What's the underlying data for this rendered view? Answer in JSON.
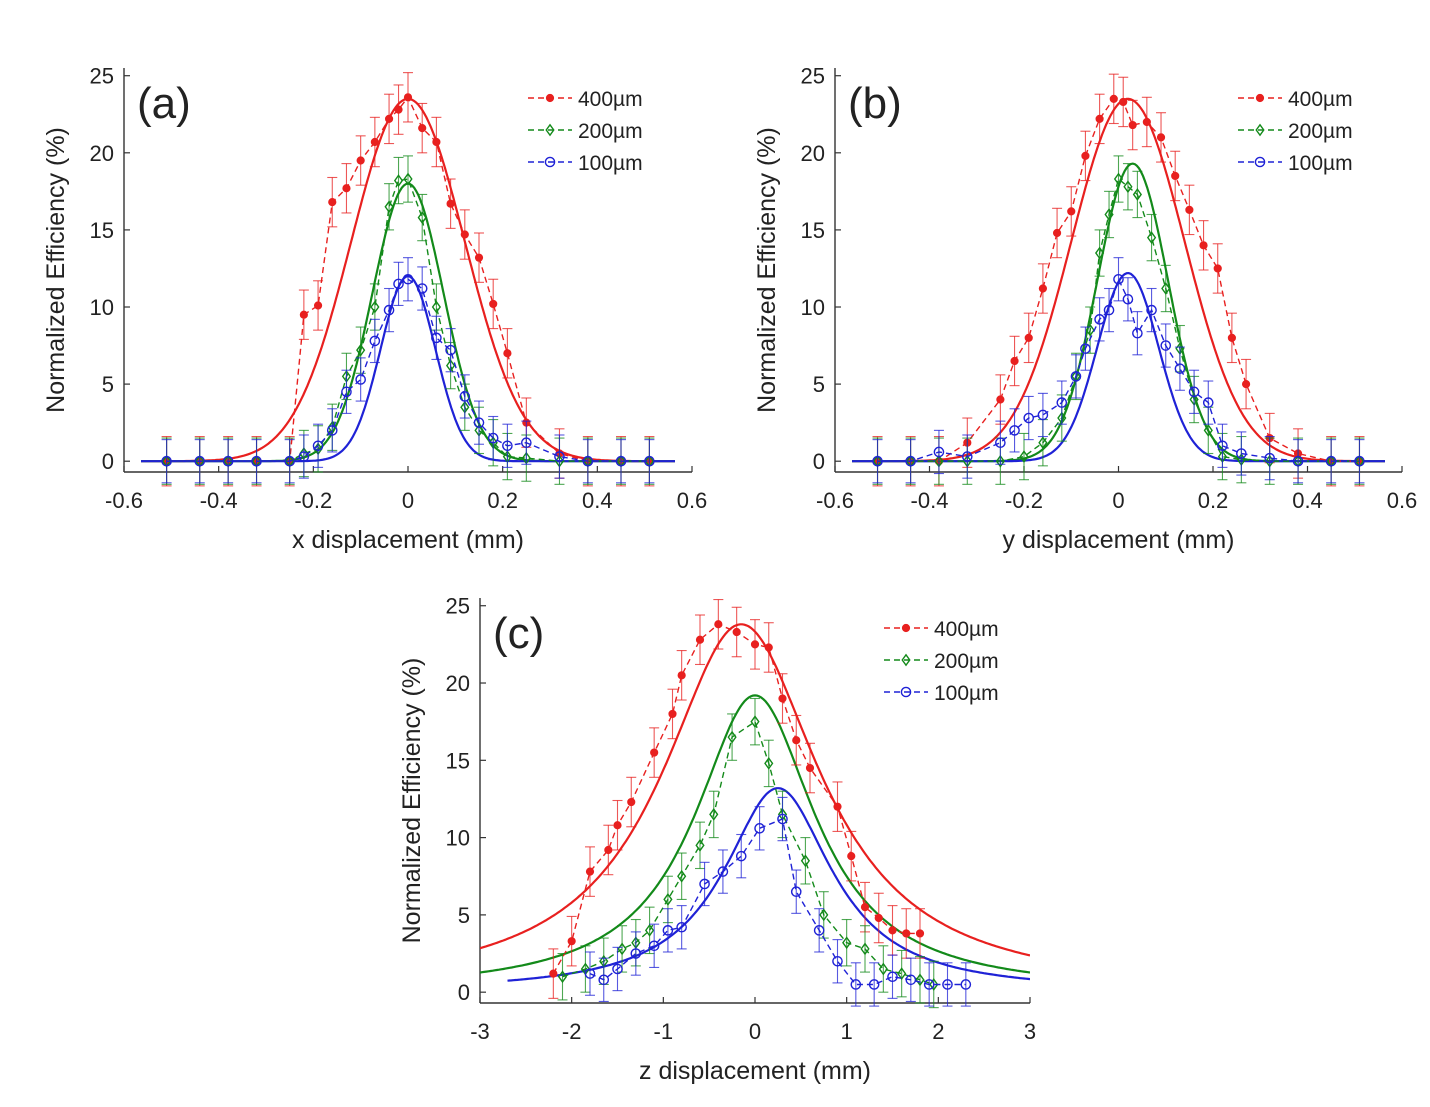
{
  "colors": {
    "400um": "#e8201f",
    "200um": "#138a1a",
    "100um": "#1f22d6"
  },
  "chart_data": [
    {
      "type": "line",
      "panel_label": "(a)",
      "xlabel": "x displacement (mm)",
      "ylabel": "Normalized Efficiency (%)",
      "xlim": [
        -0.6,
        0.6
      ],
      "ylim": [
        -0.7,
        25.5
      ],
      "xticks": [
        -0.6,
        -0.4,
        -0.2,
        0,
        0.2,
        0.4,
        0.6
      ],
      "xtick_labels": [
        "-0.6",
        "-0.4",
        "-0.2",
        "0",
        "0.2",
        "0.4",
        "0.6"
      ],
      "yticks": [
        0,
        5,
        10,
        15,
        20,
        25
      ],
      "ytick_labels": [
        "0",
        "5",
        "10",
        "15",
        "20",
        "25"
      ],
      "legend": [
        "400µm",
        "200µm",
        "100µm"
      ],
      "fits": [
        {
          "key": "400um",
          "model": "gauss",
          "A": 23.5,
          "mu": 0.0,
          "sigma": 0.12
        },
        {
          "key": "200um",
          "model": "gauss",
          "A": 18.0,
          "mu": 0.0,
          "sigma": 0.075
        },
        {
          "key": "100um",
          "model": "gauss",
          "A": 12.0,
          "mu": 0.0,
          "sigma": 0.058
        }
      ],
      "series": [
        {
          "name": "400µm",
          "key": "400um",
          "marker": "dot",
          "x": [
            -0.51,
            -0.44,
            -0.38,
            -0.32,
            -0.25,
            -0.22,
            -0.19,
            -0.16,
            -0.13,
            -0.1,
            -0.07,
            -0.04,
            -0.02,
            0.0,
            0.03,
            0.06,
            0.09,
            0.12,
            0.15,
            0.18,
            0.21,
            0.25,
            0.32,
            0.38,
            0.45,
            0.51
          ],
          "y": [
            0,
            0,
            0,
            0,
            0,
            9.5,
            10.1,
            16.8,
            17.7,
            19.5,
            20.7,
            22.2,
            22.8,
            23.6,
            21.6,
            20.7,
            16.7,
            14.7,
            13.2,
            10.2,
            7.0,
            2.5,
            0.5,
            0,
            0,
            0
          ],
          "err": [
            1.6,
            1.6,
            1.6,
            1.6,
            1.6,
            1.6,
            1.6,
            1.6,
            1.6,
            1.6,
            1.6,
            1.6,
            1.6,
            1.6,
            1.6,
            1.6,
            1.6,
            1.6,
            1.6,
            1.6,
            1.6,
            1.6,
            1.6,
            1.6,
            1.6,
            1.6
          ]
        },
        {
          "name": "200µm",
          "key": "200um",
          "marker": "diamond",
          "x": [
            -0.51,
            -0.44,
            -0.38,
            -0.32,
            -0.25,
            -0.22,
            -0.19,
            -0.16,
            -0.13,
            -0.1,
            -0.07,
            -0.04,
            -0.02,
            0.0,
            0.03,
            0.06,
            0.09,
            0.12,
            0.15,
            0.18,
            0.21,
            0.25,
            0.32,
            0.38,
            0.45,
            0.51
          ],
          "y": [
            0,
            0,
            0,
            0,
            0,
            0.5,
            0.8,
            2.2,
            5.5,
            7.2,
            10.0,
            16.5,
            18.2,
            18.3,
            15.8,
            10.0,
            6.2,
            3.5,
            2.0,
            1.2,
            0.3,
            0.2,
            0,
            0,
            0,
            0
          ],
          "err": [
            1.5,
            1.5,
            1.5,
            1.5,
            1.5,
            1.5,
            1.5,
            1.5,
            1.5,
            1.5,
            1.5,
            1.5,
            1.5,
            1.5,
            1.5,
            1.5,
            1.5,
            1.5,
            1.5,
            1.5,
            1.5,
            1.5,
            1.5,
            1.5,
            1.5,
            1.5
          ]
        },
        {
          "name": "100µm",
          "key": "100um",
          "marker": "circle",
          "x": [
            -0.51,
            -0.44,
            -0.38,
            -0.32,
            -0.25,
            -0.22,
            -0.19,
            -0.16,
            -0.13,
            -0.1,
            -0.07,
            -0.04,
            -0.02,
            0.0,
            0.03,
            0.06,
            0.09,
            0.12,
            0.15,
            0.18,
            0.21,
            0.25,
            0.32,
            0.38,
            0.45,
            0.51
          ],
          "y": [
            0,
            0,
            0,
            0,
            0,
            0.3,
            1.0,
            2.0,
            4.5,
            5.3,
            7.8,
            9.8,
            11.5,
            11.8,
            11.2,
            8.0,
            7.2,
            4.2,
            2.5,
            1.5,
            1.0,
            1.2,
            0.3,
            0,
            0,
            0
          ],
          "err": [
            1.4,
            1.4,
            1.4,
            1.4,
            1.4,
            1.4,
            1.4,
            1.4,
            1.4,
            1.4,
            1.4,
            1.4,
            1.4,
            1.4,
            1.4,
            1.4,
            1.4,
            1.4,
            1.4,
            1.4,
            1.4,
            1.4,
            1.4,
            1.4,
            1.4,
            1.4
          ]
        }
      ]
    },
    {
      "type": "line",
      "panel_label": "(b)",
      "xlabel": "y displacement (mm)",
      "ylabel": "Normalized Efficiency (%)",
      "xlim": [
        -0.6,
        0.6
      ],
      "ylim": [
        -0.7,
        25.5
      ],
      "xticks": [
        -0.6,
        -0.4,
        -0.2,
        0,
        0.2,
        0.4,
        0.6
      ],
      "xtick_labels": [
        "-0.6",
        "-0.4",
        "-0.2",
        "0",
        "0.2",
        "0.4",
        "0.6"
      ],
      "yticks": [
        0,
        5,
        10,
        15,
        20,
        25
      ],
      "ytick_labels": [
        "0",
        "5",
        "10",
        "15",
        "20",
        "25"
      ],
      "legend": [
        "400µm",
        "200µm",
        "100µm"
      ],
      "fits": [
        {
          "key": "400um",
          "model": "gauss",
          "A": 23.5,
          "mu": 0.02,
          "sigma": 0.12
        },
        {
          "key": "200um",
          "model": "gauss",
          "A": 19.3,
          "mu": 0.03,
          "sigma": 0.075
        },
        {
          "key": "100um",
          "model": "gauss",
          "A": 12.2,
          "mu": 0.02,
          "sigma": 0.065
        }
      ],
      "series": [
        {
          "name": "400µm",
          "key": "400um",
          "marker": "dot",
          "x": [
            -0.51,
            -0.44,
            -0.38,
            -0.32,
            -0.25,
            -0.22,
            -0.19,
            -0.16,
            -0.13,
            -0.1,
            -0.07,
            -0.04,
            -0.01,
            0.01,
            0.03,
            0.06,
            0.09,
            0.12,
            0.15,
            0.18,
            0.21,
            0.24,
            0.27,
            0.32,
            0.38,
            0.45,
            0.51
          ],
          "y": [
            0,
            0,
            0,
            1.2,
            4.0,
            6.5,
            8.0,
            11.2,
            14.8,
            16.2,
            19.8,
            22.2,
            23.5,
            23.3,
            21.8,
            22.0,
            21.0,
            18.5,
            16.3,
            14.0,
            12.5,
            8.0,
            5.0,
            1.5,
            0.5,
            0,
            0
          ],
          "err": [
            1.6,
            1.6,
            1.6,
            1.6,
            1.6,
            1.6,
            1.6,
            1.6,
            1.6,
            1.6,
            1.6,
            1.6,
            1.6,
            1.6,
            1.6,
            1.6,
            1.6,
            1.6,
            1.6,
            1.6,
            1.6,
            1.6,
            1.6,
            1.6,
            1.6,
            1.6,
            1.6
          ]
        },
        {
          "name": "200µm",
          "key": "200um",
          "marker": "diamond",
          "x": [
            -0.51,
            -0.44,
            -0.38,
            -0.32,
            -0.25,
            -0.2,
            -0.16,
            -0.12,
            -0.09,
            -0.06,
            -0.04,
            -0.02,
            0.0,
            0.02,
            0.04,
            0.07,
            0.1,
            0.13,
            0.16,
            0.19,
            0.22,
            0.26,
            0.32,
            0.38,
            0.45,
            0.51
          ],
          "y": [
            0,
            0,
            0,
            0,
            0,
            0.3,
            1.2,
            2.8,
            5.5,
            8.5,
            13.5,
            16.0,
            18.3,
            17.8,
            17.3,
            14.5,
            11.2,
            7.3,
            4.0,
            2.0,
            0.3,
            0.1,
            0,
            0,
            0,
            0
          ],
          "err": [
            1.5,
            1.5,
            1.5,
            1.5,
            1.5,
            1.5,
            1.5,
            1.5,
            1.5,
            1.5,
            1.5,
            1.5,
            1.5,
            1.5,
            1.5,
            1.5,
            1.5,
            1.5,
            1.5,
            1.5,
            1.5,
            1.5,
            1.5,
            1.5,
            1.5,
            1.5
          ]
        },
        {
          "name": "100µm",
          "key": "100um",
          "marker": "circle",
          "x": [
            -0.51,
            -0.44,
            -0.38,
            -0.32,
            -0.25,
            -0.22,
            -0.19,
            -0.16,
            -0.12,
            -0.09,
            -0.07,
            -0.04,
            -0.02,
            0.0,
            0.02,
            0.04,
            0.07,
            0.1,
            0.13,
            0.16,
            0.19,
            0.22,
            0.26,
            0.32,
            0.38,
            0.45,
            0.51
          ],
          "y": [
            0,
            0,
            0.6,
            0.3,
            1.2,
            2.0,
            2.8,
            3.0,
            3.8,
            5.5,
            7.3,
            9.2,
            9.8,
            11.8,
            10.5,
            8.3,
            9.8,
            7.5,
            6.0,
            4.5,
            3.8,
            1.0,
            0.5,
            0.2,
            0,
            0,
            0
          ],
          "err": [
            1.4,
            1.4,
            1.4,
            1.4,
            1.4,
            1.4,
            1.4,
            1.4,
            1.4,
            1.4,
            1.4,
            1.4,
            1.4,
            1.4,
            1.4,
            1.4,
            1.4,
            1.4,
            1.4,
            1.4,
            1.4,
            1.4,
            1.4,
            1.4,
            1.4,
            1.4,
            1.4
          ]
        }
      ]
    },
    {
      "type": "line",
      "panel_label": "(c)",
      "xlabel": "z displacement (mm)",
      "ylabel": "Normalized Efficiency (%)",
      "xlim": [
        -3,
        3
      ],
      "ylim": [
        -0.7,
        25.5
      ],
      "xticks": [
        -3,
        -2,
        -1,
        0,
        1,
        2,
        3
      ],
      "xtick_labels": [
        "-3",
        "-2",
        "-1",
        "0",
        "1",
        "2",
        "3"
      ],
      "yticks": [
        0,
        5,
        10,
        15,
        20,
        25
      ],
      "ytick_labels": [
        "0",
        "5",
        "10",
        "15",
        "20",
        "25"
      ],
      "legend": [
        "400µm",
        "200µm",
        "100µm"
      ],
      "fits": [
        {
          "key": "400um",
          "model": "lorentz",
          "A": 23.8,
          "mu": -0.15,
          "gamma": 1.05,
          "xmin": -3.0,
          "xmax": 3.0
        },
        {
          "key": "200um",
          "model": "lorentz",
          "A": 19.2,
          "mu": 0.0,
          "gamma": 0.8,
          "xmin": -3.0,
          "xmax": 3.0
        },
        {
          "key": "100um",
          "model": "lorentz",
          "A": 13.2,
          "mu": 0.25,
          "gamma": 0.72,
          "xmin": -2.7,
          "xmax": 3.0
        }
      ],
      "series": [
        {
          "name": "400µm",
          "key": "400um",
          "marker": "dot",
          "x": [
            -2.2,
            -2.0,
            -1.8,
            -1.6,
            -1.5,
            -1.35,
            -1.1,
            -0.9,
            -0.8,
            -0.6,
            -0.4,
            -0.2,
            0.0,
            0.15,
            0.3,
            0.45,
            0.6,
            0.9,
            1.05,
            1.2,
            1.35,
            1.5,
            1.65,
            1.8
          ],
          "y": [
            1.2,
            3.3,
            7.8,
            9.2,
            10.8,
            12.3,
            15.5,
            18.0,
            20.5,
            22.8,
            23.8,
            23.3,
            22.5,
            22.3,
            19.0,
            16.3,
            14.5,
            12.0,
            8.8,
            5.5,
            4.8,
            4.0,
            3.8,
            3.8
          ],
          "err": [
            1.6,
            1.6,
            1.6,
            1.6,
            1.6,
            1.6,
            1.6,
            1.6,
            1.6,
            1.6,
            1.6,
            1.6,
            1.6,
            1.6,
            1.6,
            1.6,
            1.6,
            1.6,
            1.6,
            1.6,
            1.6,
            1.6,
            1.6,
            1.6
          ]
        },
        {
          "name": "200µm",
          "key": "200um",
          "marker": "diamond",
          "x": [
            -2.1,
            -1.85,
            -1.65,
            -1.45,
            -1.3,
            -1.15,
            -0.95,
            -0.8,
            -0.6,
            -0.45,
            -0.25,
            0.0,
            0.15,
            0.3,
            0.55,
            0.75,
            1.0,
            1.2,
            1.4,
            1.6,
            1.8,
            1.95
          ],
          "y": [
            1.0,
            1.5,
            2.0,
            2.8,
            3.2,
            4.0,
            6.0,
            7.5,
            9.5,
            11.5,
            16.5,
            17.5,
            14.8,
            11.5,
            8.5,
            5.0,
            3.2,
            2.8,
            1.5,
            1.2,
            0.8,
            0.5
          ],
          "err": [
            1.5,
            1.5,
            1.5,
            1.5,
            1.5,
            1.5,
            1.5,
            1.5,
            1.5,
            1.5,
            1.5,
            1.5,
            1.5,
            1.5,
            1.5,
            1.5,
            1.5,
            1.5,
            1.5,
            1.5,
            1.5,
            1.5
          ]
        },
        {
          "name": "100µm",
          "key": "100um",
          "marker": "circle",
          "x": [
            -1.8,
            -1.65,
            -1.5,
            -1.3,
            -1.1,
            -0.95,
            -0.8,
            -0.55,
            -0.35,
            -0.15,
            0.05,
            0.3,
            0.45,
            0.7,
            0.9,
            1.1,
            1.3,
            1.5,
            1.7,
            1.9,
            2.1,
            2.3
          ],
          "y": [
            1.2,
            0.8,
            1.5,
            2.5,
            3.0,
            4.0,
            4.2,
            7.0,
            7.8,
            8.8,
            10.6,
            11.2,
            6.5,
            4.0,
            2.0,
            0.5,
            0.5,
            1.0,
            0.8,
            0.5,
            0.5,
            0.5
          ],
          "err": [
            1.4,
            1.4,
            1.4,
            1.4,
            1.4,
            1.4,
            1.4,
            1.4,
            1.4,
            1.4,
            1.4,
            1.4,
            1.4,
            1.4,
            1.4,
            1.4,
            1.4,
            1.4,
            1.4,
            1.4,
            1.4,
            1.4
          ]
        }
      ]
    }
  ]
}
